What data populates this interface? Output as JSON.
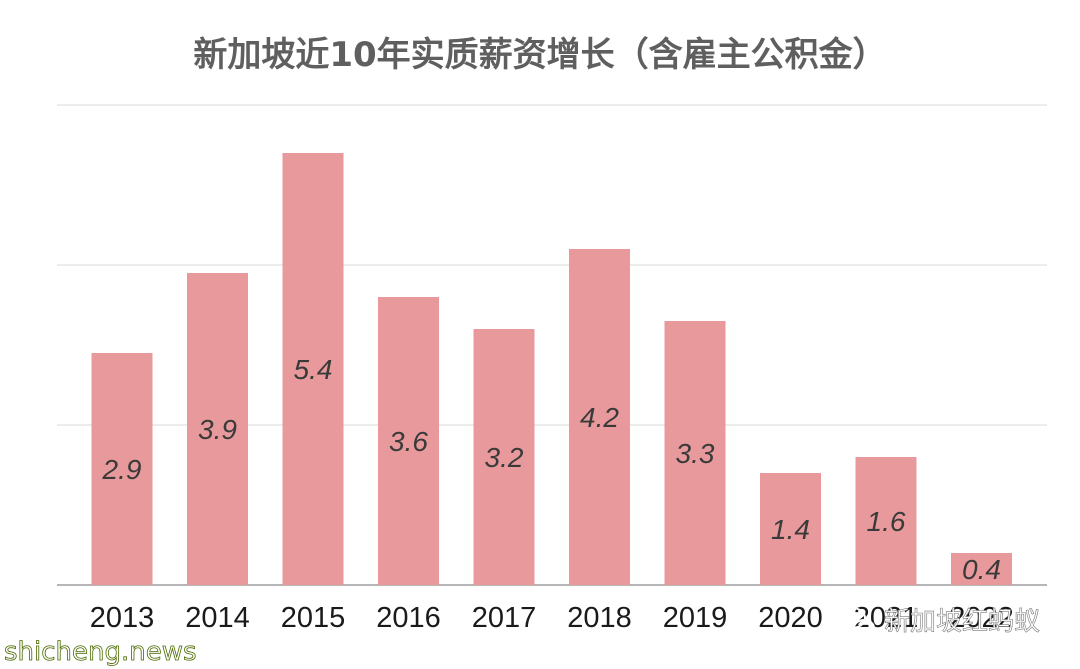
{
  "chart_data": {
    "type": "bar",
    "title": "新加坡近10年实质薪资增长（含雇主公积金）",
    "categories": [
      "2013",
      "2014",
      "2015",
      "2016",
      "2017",
      "2018",
      "2019",
      "2020",
      "2021",
      "2022"
    ],
    "values": [
      2.9,
      3.9,
      5.4,
      3.6,
      3.2,
      4.2,
      3.3,
      1.4,
      1.6,
      0.4
    ],
    "ylim": [
      0,
      6
    ],
    "gridlines": [
      0,
      2,
      4,
      6
    ],
    "grid": true,
    "legend": "none",
    "xlabel": "",
    "ylabel": "",
    "colors": {
      "bar": "#e8999b",
      "grid": "#d9d9d9",
      "axis": "#9e9e9e",
      "title": "#5f5f5f"
    }
  },
  "watermarks": {
    "site": "shicheng.news",
    "account": "新加坡红蚂蚁",
    "icon": "wechat-icon"
  }
}
